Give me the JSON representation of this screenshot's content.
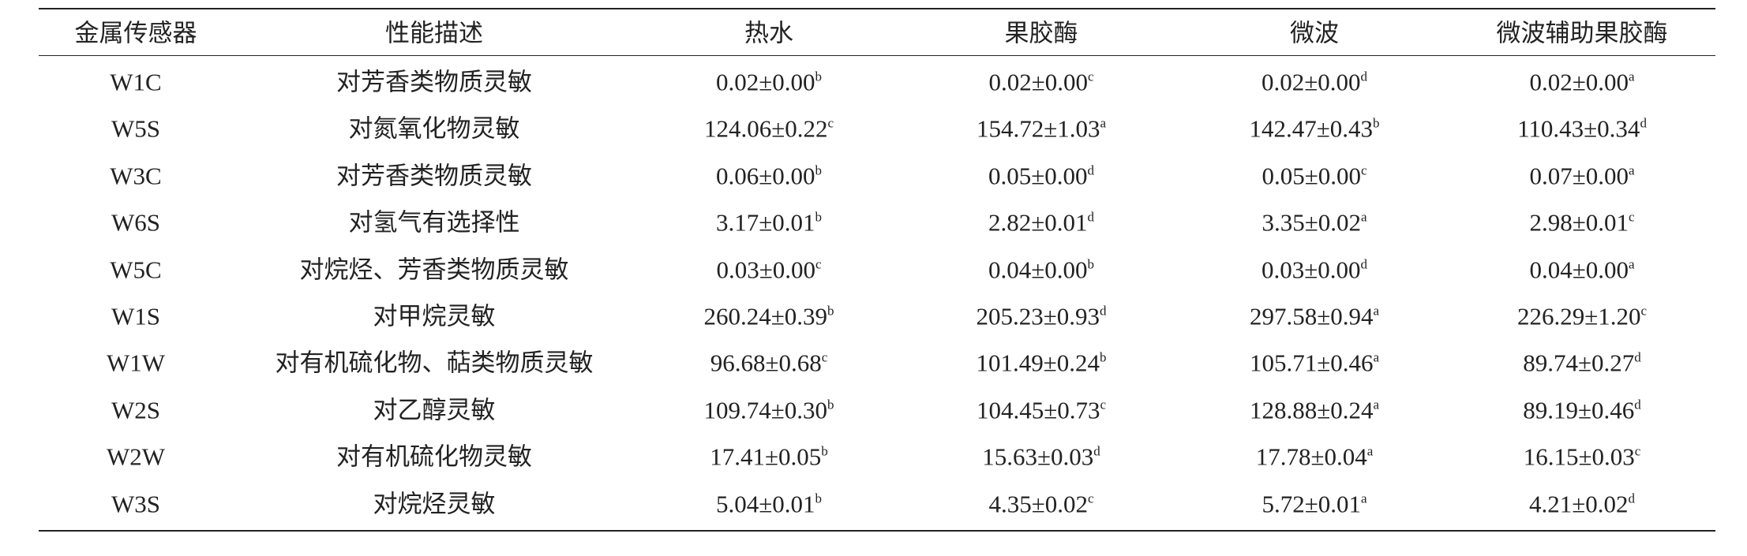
{
  "table": {
    "header": [
      "金属传感器",
      "性能描述",
      "热水",
      "果胶酶",
      "微波",
      "微波辅助果胶酶"
    ],
    "rows": [
      {
        "sensor": "W1C",
        "description": "对芳香类物质灵敏",
        "cells": [
          {
            "value": "0.02±0.00",
            "sup": "b"
          },
          {
            "value": "0.02±0.00",
            "sup": "c"
          },
          {
            "value": "0.02±0.00",
            "sup": "d"
          },
          {
            "value": "0.02±0.00",
            "sup": "a"
          }
        ]
      },
      {
        "sensor": "W5S",
        "description": "对氮氧化物灵敏",
        "cells": [
          {
            "value": "124.06±0.22",
            "sup": "c"
          },
          {
            "value": "154.72±1.03",
            "sup": "a"
          },
          {
            "value": "142.47±0.43",
            "sup": "b"
          },
          {
            "value": "110.43±0.34",
            "sup": "d"
          }
        ]
      },
      {
        "sensor": "W3C",
        "description": "对芳香类物质灵敏",
        "cells": [
          {
            "value": "0.06±0.00",
            "sup": "b"
          },
          {
            "value": "0.05±0.00",
            "sup": "d"
          },
          {
            "value": "0.05±0.00",
            "sup": "c"
          },
          {
            "value": "0.07±0.00",
            "sup": "a"
          }
        ]
      },
      {
        "sensor": "W6S",
        "description": "对氢气有选择性",
        "cells": [
          {
            "value": "3.17±0.01",
            "sup": "b"
          },
          {
            "value": "2.82±0.01",
            "sup": "d"
          },
          {
            "value": "3.35±0.02",
            "sup": "a"
          },
          {
            "value": "2.98±0.01",
            "sup": "c"
          }
        ]
      },
      {
        "sensor": "W5C",
        "description": "对烷烃、芳香类物质灵敏",
        "cells": [
          {
            "value": "0.03±0.00",
            "sup": "c"
          },
          {
            "value": "0.04±0.00",
            "sup": "b"
          },
          {
            "value": "0.03±0.00",
            "sup": "d"
          },
          {
            "value": "0.04±0.00",
            "sup": "a"
          }
        ]
      },
      {
        "sensor": "W1S",
        "description": "对甲烷灵敏",
        "cells": [
          {
            "value": "260.24±0.39",
            "sup": "b"
          },
          {
            "value": "205.23±0.93",
            "sup": "d"
          },
          {
            "value": "297.58±0.94",
            "sup": "a"
          },
          {
            "value": "226.29±1.20",
            "sup": "c"
          }
        ]
      },
      {
        "sensor": "W1W",
        "description": "对有机硫化物、萜类物质灵敏",
        "cells": [
          {
            "value": "96.68±0.68",
            "sup": "c"
          },
          {
            "value": "101.49±0.24",
            "sup": "b"
          },
          {
            "value": "105.71±0.46",
            "sup": "a"
          },
          {
            "value": "89.74±0.27",
            "sup": "d"
          }
        ]
      },
      {
        "sensor": "W2S",
        "description": "对乙醇灵敏",
        "cells": [
          {
            "value": "109.74±0.30",
            "sup": "b"
          },
          {
            "value": "104.45±0.73",
            "sup": "c"
          },
          {
            "value": "128.88±0.24",
            "sup": "a"
          },
          {
            "value": "89.19±0.46",
            "sup": "d"
          }
        ]
      },
      {
        "sensor": "W2W",
        "description": "对有机硫化物灵敏",
        "cells": [
          {
            "value": "17.41±0.05",
            "sup": "b"
          },
          {
            "value": "15.63±0.03",
            "sup": "d"
          },
          {
            "value": "17.78±0.04",
            "sup": "a"
          },
          {
            "value": "16.15±0.03",
            "sup": "c"
          }
        ]
      },
      {
        "sensor": "W3S",
        "description": "对烷烃灵敏",
        "cells": [
          {
            "value": "5.04±0.01",
            "sup": "b"
          },
          {
            "value": "4.35±0.02",
            "sup": "c"
          },
          {
            "value": "5.72±0.01",
            "sup": "a"
          },
          {
            "value": "4.21±0.02",
            "sup": "d"
          }
        ]
      }
    ]
  }
}
